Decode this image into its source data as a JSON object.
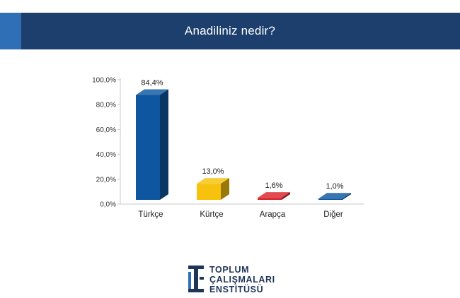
{
  "header": {
    "title": "Anadiliniz nedir?"
  },
  "colors": {
    "header_bg": "#1d3f6e",
    "header_accent": "#2f6fb6"
  },
  "chart_data": {
    "type": "bar",
    "title": "Anadiliniz nedir?",
    "categories": [
      "Türkçe",
      "Kürtçe",
      "Arapça",
      "Diğer"
    ],
    "values": [
      84.4,
      13.0,
      1.6,
      1.0
    ],
    "value_labels": [
      "84,4%",
      "13,0%",
      "1,6%",
      "1,0%"
    ],
    "bar_colors": [
      "#0e57a0",
      "#f7c20e",
      "#d9232b",
      "#0e57a0"
    ],
    "ylim": [
      0,
      100
    ],
    "yticks": [
      "0,0%",
      "20,0%",
      "40,0%",
      "60,0%",
      "80,0%",
      "100,0%"
    ],
    "grid": false,
    "legend": "none",
    "xlabel": "",
    "ylabel": ""
  },
  "logo": {
    "line1": "TOPLUM",
    "line2": "ÇALIŞMALARI",
    "line3": "ENSTİTÜSÜ"
  }
}
